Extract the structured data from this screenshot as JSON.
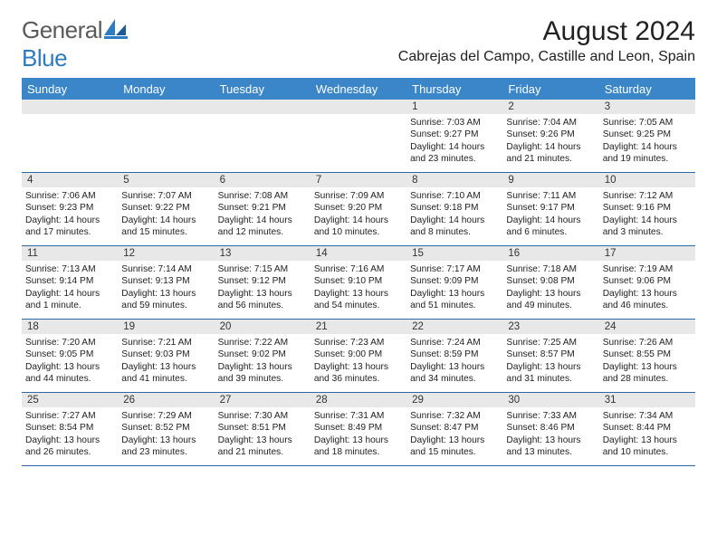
{
  "logo": {
    "word1": "General",
    "word2": "Blue"
  },
  "title": "August 2024",
  "location": "Cabrejas del Campo, Castille and Leon, Spain",
  "colors": {
    "header_bg": "#3a86c8",
    "header_text": "#ffffff",
    "band_bg": "#e8e8e8",
    "rule": "#2b6aa3",
    "text": "#222222",
    "logo_gray": "#5a5a5a",
    "logo_blue": "#2b7cc2"
  },
  "fonts": {
    "title_pt": 30,
    "location_pt": 16,
    "dayhead_pt": 13,
    "daynum_pt": 11.5,
    "body_pt": 10.2
  },
  "dayHeaders": [
    "Sunday",
    "Monday",
    "Tuesday",
    "Wednesday",
    "Thursday",
    "Friday",
    "Saturday"
  ],
  "weeks": [
    {
      "nums": [
        "",
        "",
        "",
        "",
        "1",
        "2",
        "3"
      ],
      "body": [
        {
          "sunrise": "",
          "sunset": "",
          "daylight": ""
        },
        {
          "sunrise": "",
          "sunset": "",
          "daylight": ""
        },
        {
          "sunrise": "",
          "sunset": "",
          "daylight": ""
        },
        {
          "sunrise": "",
          "sunset": "",
          "daylight": ""
        },
        {
          "sunrise": "Sunrise: 7:03 AM",
          "sunset": "Sunset: 9:27 PM",
          "daylight": "Daylight: 14 hours and 23 minutes."
        },
        {
          "sunrise": "Sunrise: 7:04 AM",
          "sunset": "Sunset: 9:26 PM",
          "daylight": "Daylight: 14 hours and 21 minutes."
        },
        {
          "sunrise": "Sunrise: 7:05 AM",
          "sunset": "Sunset: 9:25 PM",
          "daylight": "Daylight: 14 hours and 19 minutes."
        }
      ]
    },
    {
      "nums": [
        "4",
        "5",
        "6",
        "7",
        "8",
        "9",
        "10"
      ],
      "body": [
        {
          "sunrise": "Sunrise: 7:06 AM",
          "sunset": "Sunset: 9:23 PM",
          "daylight": "Daylight: 14 hours and 17 minutes."
        },
        {
          "sunrise": "Sunrise: 7:07 AM",
          "sunset": "Sunset: 9:22 PM",
          "daylight": "Daylight: 14 hours and 15 minutes."
        },
        {
          "sunrise": "Sunrise: 7:08 AM",
          "sunset": "Sunset: 9:21 PM",
          "daylight": "Daylight: 14 hours and 12 minutes."
        },
        {
          "sunrise": "Sunrise: 7:09 AM",
          "sunset": "Sunset: 9:20 PM",
          "daylight": "Daylight: 14 hours and 10 minutes."
        },
        {
          "sunrise": "Sunrise: 7:10 AM",
          "sunset": "Sunset: 9:18 PM",
          "daylight": "Daylight: 14 hours and 8 minutes."
        },
        {
          "sunrise": "Sunrise: 7:11 AM",
          "sunset": "Sunset: 9:17 PM",
          "daylight": "Daylight: 14 hours and 6 minutes."
        },
        {
          "sunrise": "Sunrise: 7:12 AM",
          "sunset": "Sunset: 9:16 PM",
          "daylight": "Daylight: 14 hours and 3 minutes."
        }
      ]
    },
    {
      "nums": [
        "11",
        "12",
        "13",
        "14",
        "15",
        "16",
        "17"
      ],
      "body": [
        {
          "sunrise": "Sunrise: 7:13 AM",
          "sunset": "Sunset: 9:14 PM",
          "daylight": "Daylight: 14 hours and 1 minute."
        },
        {
          "sunrise": "Sunrise: 7:14 AM",
          "sunset": "Sunset: 9:13 PM",
          "daylight": "Daylight: 13 hours and 59 minutes."
        },
        {
          "sunrise": "Sunrise: 7:15 AM",
          "sunset": "Sunset: 9:12 PM",
          "daylight": "Daylight: 13 hours and 56 minutes."
        },
        {
          "sunrise": "Sunrise: 7:16 AM",
          "sunset": "Sunset: 9:10 PM",
          "daylight": "Daylight: 13 hours and 54 minutes."
        },
        {
          "sunrise": "Sunrise: 7:17 AM",
          "sunset": "Sunset: 9:09 PM",
          "daylight": "Daylight: 13 hours and 51 minutes."
        },
        {
          "sunrise": "Sunrise: 7:18 AM",
          "sunset": "Sunset: 9:08 PM",
          "daylight": "Daylight: 13 hours and 49 minutes."
        },
        {
          "sunrise": "Sunrise: 7:19 AM",
          "sunset": "Sunset: 9:06 PM",
          "daylight": "Daylight: 13 hours and 46 minutes."
        }
      ]
    },
    {
      "nums": [
        "18",
        "19",
        "20",
        "21",
        "22",
        "23",
        "24"
      ],
      "body": [
        {
          "sunrise": "Sunrise: 7:20 AM",
          "sunset": "Sunset: 9:05 PM",
          "daylight": "Daylight: 13 hours and 44 minutes."
        },
        {
          "sunrise": "Sunrise: 7:21 AM",
          "sunset": "Sunset: 9:03 PM",
          "daylight": "Daylight: 13 hours and 41 minutes."
        },
        {
          "sunrise": "Sunrise: 7:22 AM",
          "sunset": "Sunset: 9:02 PM",
          "daylight": "Daylight: 13 hours and 39 minutes."
        },
        {
          "sunrise": "Sunrise: 7:23 AM",
          "sunset": "Sunset: 9:00 PM",
          "daylight": "Daylight: 13 hours and 36 minutes."
        },
        {
          "sunrise": "Sunrise: 7:24 AM",
          "sunset": "Sunset: 8:59 PM",
          "daylight": "Daylight: 13 hours and 34 minutes."
        },
        {
          "sunrise": "Sunrise: 7:25 AM",
          "sunset": "Sunset: 8:57 PM",
          "daylight": "Daylight: 13 hours and 31 minutes."
        },
        {
          "sunrise": "Sunrise: 7:26 AM",
          "sunset": "Sunset: 8:55 PM",
          "daylight": "Daylight: 13 hours and 28 minutes."
        }
      ]
    },
    {
      "nums": [
        "25",
        "26",
        "27",
        "28",
        "29",
        "30",
        "31"
      ],
      "body": [
        {
          "sunrise": "Sunrise: 7:27 AM",
          "sunset": "Sunset: 8:54 PM",
          "daylight": "Daylight: 13 hours and 26 minutes."
        },
        {
          "sunrise": "Sunrise: 7:29 AM",
          "sunset": "Sunset: 8:52 PM",
          "daylight": "Daylight: 13 hours and 23 minutes."
        },
        {
          "sunrise": "Sunrise: 7:30 AM",
          "sunset": "Sunset: 8:51 PM",
          "daylight": "Daylight: 13 hours and 21 minutes."
        },
        {
          "sunrise": "Sunrise: 7:31 AM",
          "sunset": "Sunset: 8:49 PM",
          "daylight": "Daylight: 13 hours and 18 minutes."
        },
        {
          "sunrise": "Sunrise: 7:32 AM",
          "sunset": "Sunset: 8:47 PM",
          "daylight": "Daylight: 13 hours and 15 minutes."
        },
        {
          "sunrise": "Sunrise: 7:33 AM",
          "sunset": "Sunset: 8:46 PM",
          "daylight": "Daylight: 13 hours and 13 minutes."
        },
        {
          "sunrise": "Sunrise: 7:34 AM",
          "sunset": "Sunset: 8:44 PM",
          "daylight": "Daylight: 13 hours and 10 minutes."
        }
      ]
    }
  ]
}
